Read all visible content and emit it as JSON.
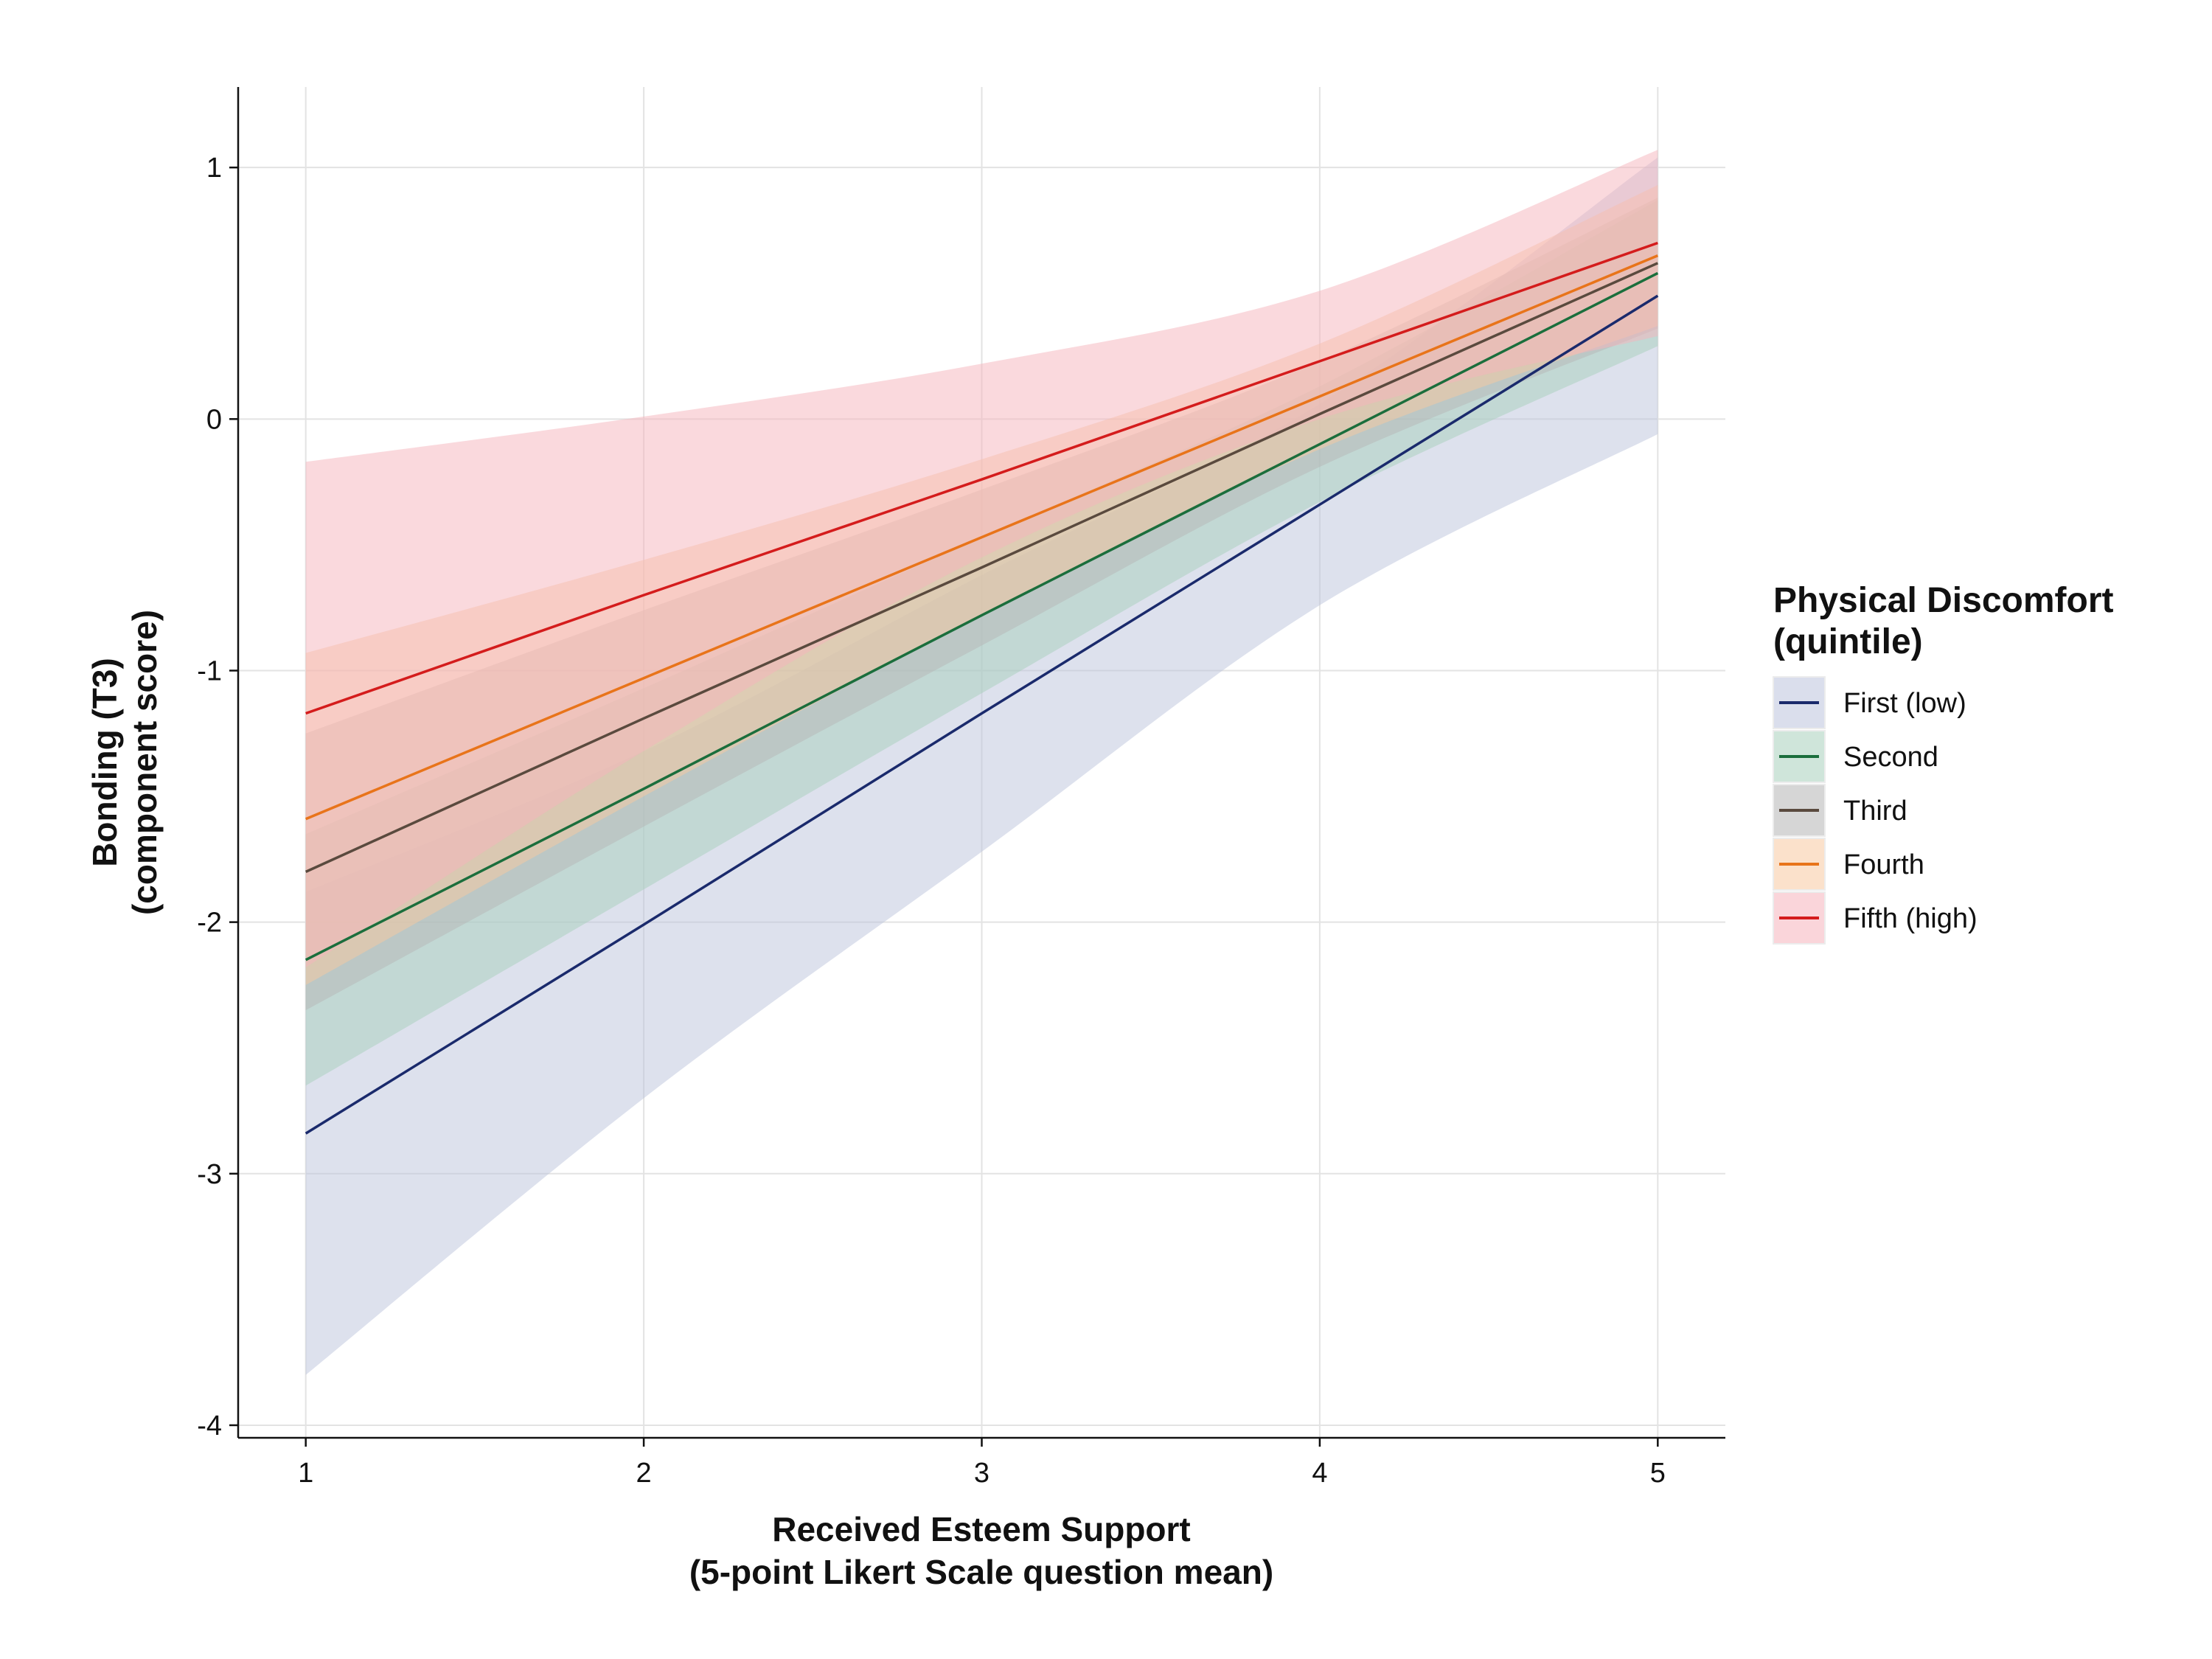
{
  "chart_data": {
    "type": "line",
    "title": "",
    "xlabel": [
      "Received Esteem Support",
      "(5-point Likert Scale question mean)"
    ],
    "ylabel": [
      "Bonding (T3)",
      "(component score)"
    ],
    "xlim": [
      0.8,
      5.2
    ],
    "ylim": [
      -4.05,
      1.32
    ],
    "xticks": [
      1,
      2,
      3,
      4,
      5
    ],
    "yticks": [
      1,
      0,
      -1,
      -2,
      -3,
      -4
    ],
    "grid": true,
    "legend": {
      "title": [
        "Physical Discomfort",
        "(quintile)"
      ],
      "position": "right"
    },
    "series": [
      {
        "name": "First (low)",
        "color": "#1a2a6c",
        "band_color": "#bcc3dc",
        "x": [
          1,
          2,
          3,
          4,
          5
        ],
        "y": [
          -2.84,
          -2.01,
          -1.17,
          -0.34,
          0.49
        ],
        "lower": [
          -3.8,
          -2.7,
          -1.72,
          -0.74,
          -0.06
        ],
        "upper": [
          -1.88,
          -1.32,
          -0.62,
          0.06,
          1.04
        ]
      },
      {
        "name": "Second",
        "color": "#1b6e3c",
        "band_color": "#a8d0bc",
        "x": [
          1,
          2,
          3,
          4,
          5
        ],
        "y": [
          -2.15,
          -1.47,
          -0.78,
          -0.1,
          0.58
        ],
        "lower": [
          -2.65,
          -1.87,
          -1.09,
          -0.33,
          0.29
        ],
        "upper": [
          -1.65,
          -1.07,
          -0.47,
          0.13,
          0.87
        ]
      },
      {
        "name": "Third",
        "color": "#5a4a3e",
        "band_color": "#b5b5b5",
        "x": [
          1,
          2,
          3,
          4,
          5
        ],
        "y": [
          -1.8,
          -1.19,
          -0.59,
          0.02,
          0.62
        ],
        "lower": [
          -2.35,
          -1.62,
          -0.9,
          -0.19,
          0.36
        ],
        "upper": [
          -1.25,
          -0.76,
          -0.28,
          0.23,
          0.88
        ]
      },
      {
        "name": "Fourth",
        "color": "#e8741a",
        "band_color": "#f7c9a0",
        "x": [
          1,
          2,
          3,
          4,
          5
        ],
        "y": [
          -1.59,
          -1.03,
          -0.47,
          0.09,
          0.65
        ],
        "lower": [
          -2.25,
          -1.5,
          -0.78,
          -0.12,
          0.37
        ],
        "upper": [
          -0.93,
          -0.56,
          -0.16,
          0.3,
          0.93
        ]
      },
      {
        "name": "Fifth (high)",
        "color": "#d41c1c",
        "band_color": "#f5b3bb",
        "x": [
          1,
          2,
          3,
          4,
          5
        ],
        "y": [
          -1.17,
          -0.7,
          -0.24,
          0.23,
          0.7
        ],
        "lower": [
          -2.18,
          -1.32,
          -0.55,
          0.0,
          0.33
        ],
        "upper": [
          -0.17,
          0.01,
          0.22,
          0.51,
          1.07
        ]
      }
    ]
  }
}
